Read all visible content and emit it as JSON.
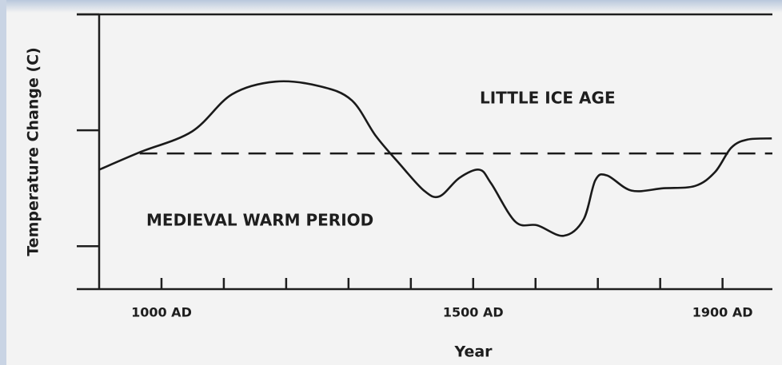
{
  "chart_data": {
    "type": "line",
    "xlabel": "Year",
    "ylabel": "Temperature Change (C)",
    "annotations": [
      "LITTLE ICE AGE",
      "MEDIEVAL WARM PERIOD"
    ],
    "series": [
      {
        "color": "#1a1a1a",
        "x": [
          900,
          965,
          1049,
          1113,
          1183,
          1254,
          1305,
          1344,
          1382,
          1421,
          1446,
          1478,
          1510,
          1529,
          1568,
          1603,
          1645,
          1677,
          1696,
          1715,
          1754,
          1805,
          1856,
          1888,
          1914,
          1940,
          1979
        ],
        "values": [
          -0.34,
          -0.19,
          -0.01,
          0.31,
          0.42,
          0.38,
          0.26,
          -0.05,
          -0.29,
          -0.52,
          -0.57,
          -0.41,
          -0.34,
          -0.46,
          -0.79,
          -0.82,
          -0.91,
          -0.77,
          -0.43,
          -0.39,
          -0.52,
          -0.5,
          -0.48,
          -0.36,
          -0.15,
          -0.08,
          -0.07
        ]
      }
    ],
    "reference_line": {
      "value": -0.2,
      "x": [
        965,
        1980
      ],
      "color": "#1a1a1a"
    },
    "xlim": [
      900,
      1980
    ],
    "ylim": [
      -1.37,
      1.0
    ],
    "xticks": [
      {
        "value": 1000,
        "label": "1000 AD"
      },
      {
        "value": 1500,
        "label": "1500 AD"
      },
      {
        "value": 1900,
        "label": "1900 AD"
      }
    ],
    "xminor_ticks": [
      1100,
      1200,
      1300,
      1400,
      1600,
      1700,
      1800
    ],
    "yticks": [
      -1,
      0,
      1
    ]
  }
}
